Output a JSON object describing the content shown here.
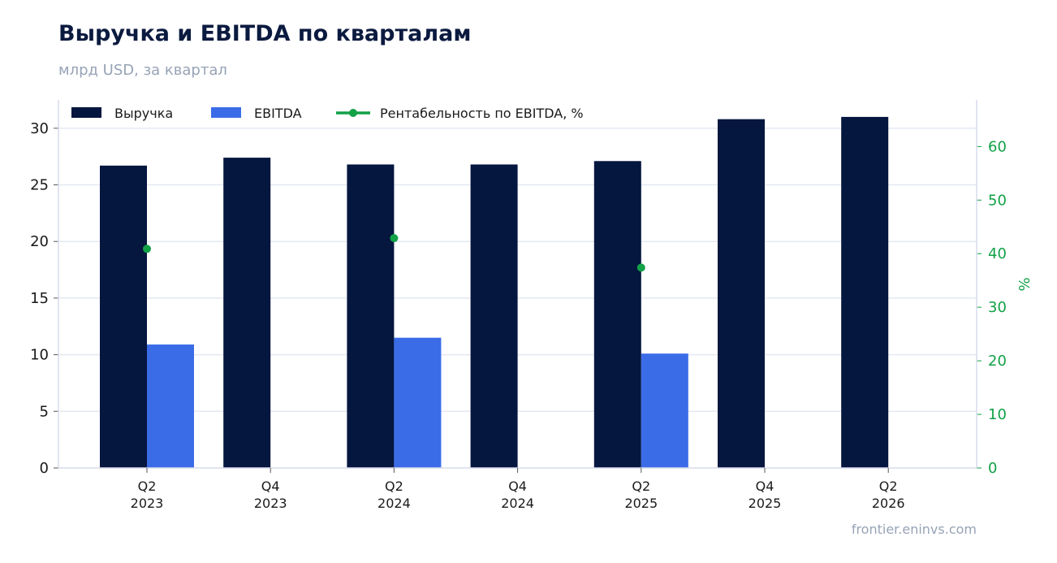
{
  "header": {
    "title": "Выручка и EBITDA по кварталам",
    "subtitle": "млрд USD, за квартал"
  },
  "footer": {
    "source": "frontier.eninvs.com"
  },
  "colors": {
    "revenue": "#05163f",
    "ebitda": "#3b6ce8",
    "margin": "#12a147",
    "grid": "#e3e8f2",
    "axis": "#d7dceb",
    "left_tick_text": "#1a1a1a",
    "right_tick_text": "#12a147"
  },
  "chart_data": {
    "type": "bar",
    "categories": [
      [
        "Q2",
        "2023"
      ],
      [
        "Q4",
        "2023"
      ],
      [
        "Q2",
        "2024"
      ],
      [
        "Q4",
        "2024"
      ],
      [
        "Q2",
        "2025"
      ],
      [
        "Q4",
        "2025"
      ],
      [
        "Q2",
        "2026"
      ]
    ],
    "series": [
      {
        "name": "Выручка",
        "kind": "bar",
        "axis": "left",
        "values": [
          26.7,
          27.4,
          26.8,
          26.8,
          27.1,
          30.8,
          31.0
        ]
      },
      {
        "name": "EBITDA",
        "kind": "bar",
        "axis": "left",
        "values": [
          10.9,
          null,
          11.5,
          null,
          10.1,
          null,
          null
        ]
      },
      {
        "name": "Рентабельность по EBITDA, %",
        "kind": "line-markers",
        "axis": "right",
        "values": [
          40.9,
          null,
          42.9,
          null,
          37.4,
          null,
          null
        ]
      }
    ],
    "ylim": [
      0,
      32.5
    ],
    "yticks": [
      0,
      5,
      10,
      15,
      20,
      25,
      30
    ],
    "y2lim": [
      0,
      68.7
    ],
    "y2ticks": [
      0,
      10,
      20,
      30,
      40,
      50,
      60
    ],
    "y2label": "%",
    "grid": true,
    "legend_position": "top-left"
  }
}
